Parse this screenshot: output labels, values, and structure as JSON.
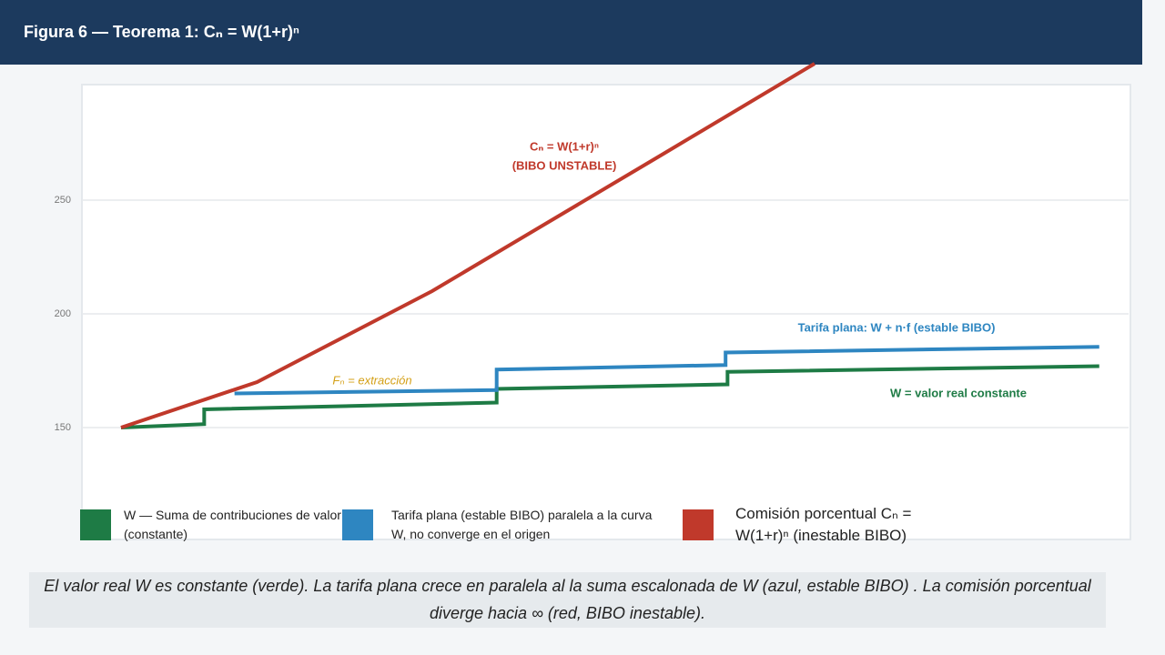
{
  "chart_data": {
    "type": "line",
    "title": "Figura 6 — Teorema 1: Cₙ = W(1+r)ⁿ",
    "xlim": [
      -4,
      103
    ],
    "ylim": [
      100,
      300
    ],
    "yticks": [
      150,
      200,
      250
    ],
    "grid": true,
    "series": [
      {
        "name": "W — Suma de contribuciones de valor (constante)",
        "color": "#1e7b45",
        "x": [
          0,
          8.5,
          8.5,
          38.4,
          38.4,
          62,
          62,
          100
        ],
        "values": [
          150,
          151.5,
          158,
          161,
          167,
          169,
          174.5,
          177
        ]
      },
      {
        "name": "Tarifa plana (estable BIBO) paralela a la curva W, no converge en el origen",
        "color": "#2e86c1",
        "x": [
          11.6,
          38.4,
          38.4,
          61.8,
          61.8,
          100
        ],
        "values": [
          165,
          166.5,
          175.5,
          177.5,
          183,
          185.5
        ]
      },
      {
        "name": "Comisión porcentual Cₙ = W(1+r)ⁿ (inestable BIBO)",
        "color": "#c0392b",
        "x": [
          0,
          13.9,
          31.8,
          55.3,
          70.9
        ],
        "values": [
          150,
          170,
          210,
          270,
          310
        ]
      }
    ],
    "annotations": [
      "Cₙ = W(1+r)ⁿ",
      "(BIBO UNSTABLE)",
      "Tarifa plana: W + n·f (estable BIBO)",
      "W = valor real constante",
      "Fₙ = extracción"
    ],
    "caption": "El valor real W es constante (verde). La tarifa plana crece en paralela al la suma escalonada de W (azul, estable BIBO) . La comisión porcentual diverge hacia ∞ (red, BIBO inestable)."
  }
}
